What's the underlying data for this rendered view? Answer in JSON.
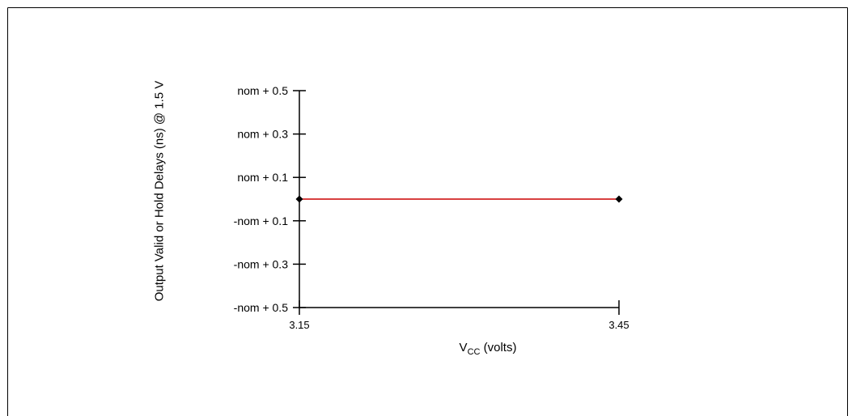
{
  "chart_data": {
    "type": "line",
    "xlabel": "V",
    "xlabel_subscript": "CC",
    "xlabel_suffix": " (volts)",
    "ylabel": "Output Valid or Hold Delays (ns) @ 1.5 V",
    "x_categories": [
      "3.15",
      "3.45"
    ],
    "y_categories": [
      "nom + 0.5",
      "nom + 0.3",
      "nom + 0.1",
      "-nom + 0.1",
      "-nom + 0.3",
      "-nom + 0.5"
    ],
    "series": [
      {
        "color": "#cc0000",
        "marker_color": "#000000",
        "points": [
          {
            "x": "3.15",
            "y": "nom"
          },
          {
            "x": "3.45",
            "y": "nom"
          }
        ]
      }
    ],
    "grid": false,
    "legend": "none"
  }
}
